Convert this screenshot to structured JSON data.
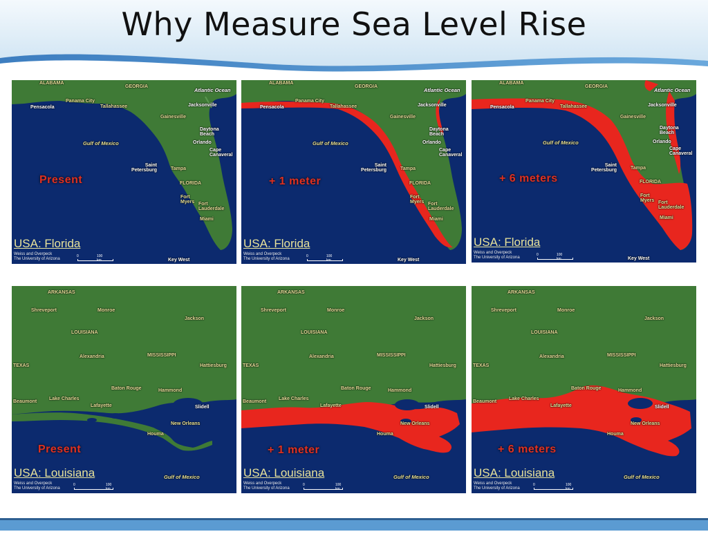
{
  "slide": {
    "title": "Why Measure Sea Level Rise"
  },
  "colors": {
    "land": "#3f7a36",
    "ocean": "#0c2a6e",
    "flood": "#e8261e",
    "label": "#e8e29a",
    "accent": "#4a8ec6"
  },
  "panels": [
    {
      "region": "USA: Florida",
      "scenario": "Present",
      "credit1": "Weiss and Overpeck",
      "credit2": "The University of Arizona",
      "scale0": "0",
      "scale1": "100 km",
      "labels": {
        "alabama": "ALABAMA",
        "georgia": "GEORGIA",
        "atlantic": "Atlantic Ocean",
        "pensacola": "Pensacola",
        "panama": "Panama City",
        "tallahassee": "Tallahassee",
        "jacksonville": "Jacksonville",
        "gainesville": "Gainesville",
        "daytona": "Daytona Beach",
        "orlando": "Orlando",
        "gulf": "Gulf of Mexico",
        "cape": "Cape Canaveral",
        "stpete": "Saint Petersburg",
        "tampa": "Tampa",
        "florida": "FLORIDA",
        "ftmyers": "Fort Myers",
        "ftlaud": "Fort Lauderdale",
        "miami": "Miami",
        "keywest": "Key West"
      }
    },
    {
      "region": "USA: Florida",
      "scenario": "+ 1 meter",
      "credit1": "Weiss and Overpeck",
      "credit2": "The University of Arizona",
      "scale0": "0",
      "scale1": "100 km",
      "labels": {
        "alabama": "ALABAMA",
        "georgia": "GEORGIA",
        "atlantic": "Atlantic Ocean",
        "pensacola": "Pensacola",
        "panama": "Panama City",
        "tallahassee": "Tallahassee",
        "jacksonville": "Jacksonville",
        "gainesville": "Gainesville",
        "daytona": "Daytona Beach",
        "orlando": "Orlando",
        "gulf": "Gulf of Mexico",
        "cape": "Cape Canaveral",
        "stpete": "Saint Petersburg",
        "tampa": "Tampa",
        "florida": "FLORIDA",
        "ftmyers": "Fort Myers",
        "ftlaud": "Fort Lauderdale",
        "miami": "Miami",
        "keywest": "Key West"
      }
    },
    {
      "region": "USA: Florida",
      "scenario": "+ 6 meters",
      "credit1": "Weiss and Overpeck",
      "credit2": "The University of Arizona",
      "scale0": "0",
      "scale1": "100 km",
      "labels": {
        "alabama": "ALABAMA",
        "georgia": "GEORGIA",
        "atlantic": "Atlantic Ocean",
        "pensacola": "Pensacola",
        "panama": "Panama City",
        "tallahassee": "Tallahassee",
        "jacksonville": "Jacksonville",
        "gainesville": "Gainesville",
        "daytona": "Daytona Beach",
        "orlando": "Orlando",
        "gulf": "Gulf of Mexico",
        "cape": "Cape Canaveral",
        "stpete": "Saint Petersburg",
        "tampa": "Tampa",
        "florida": "FLORIDA",
        "ftmyers": "Fort Myers",
        "ftlaud": "Fort Lauderdale",
        "miami": "Miami",
        "keywest": "Key West"
      }
    },
    {
      "region": "USA: Louisiana",
      "scenario": "Present",
      "credit1": "Weiss and Overpeck",
      "credit2": "The University of Arizona",
      "scale0": "0",
      "scale1": "100 km",
      "labels": {
        "arkansas": "ARKANSAS",
        "shreveport": "Shreveport",
        "monroe": "Monroe",
        "jackson": "Jackson",
        "louisiana": "LOUISIANA",
        "texas": "TEXAS",
        "alexandria": "Alexandria",
        "mississippi": "MISSISSIPPI",
        "hattiesburg": "Hattiesburg",
        "batonrouge": "Baton Rouge",
        "hammond": "Hammond",
        "beaumont": "Beaumont",
        "lakecharles": "Lake Charles",
        "lafayette": "Lafayette",
        "slidell": "Slidell",
        "neworleans": "New Orleans",
        "houma": "Houma",
        "gulf": "Gulf of Mexico"
      }
    },
    {
      "region": "USA: Louisiana",
      "scenario": "+ 1 meter",
      "credit1": "Weiss and Overpeck",
      "credit2": "The University of Arizona",
      "scale0": "0",
      "scale1": "100 km",
      "labels": {
        "arkansas": "ARKANSAS",
        "shreveport": "Shreveport",
        "monroe": "Monroe",
        "jackson": "Jackson",
        "louisiana": "LOUISIANA",
        "texas": "TEXAS",
        "alexandria": "Alexandria",
        "mississippi": "MISSISSIPPI",
        "hattiesburg": "Hattiesburg",
        "batonrouge": "Baton Rouge",
        "hammond": "Hammond",
        "beaumont": "Beaumont",
        "lakecharles": "Lake Charles",
        "lafayette": "Lafayette",
        "slidell": "Slidell",
        "neworleans": "New Orleans",
        "houma": "Houma",
        "gulf": "Gulf of Mexico"
      }
    },
    {
      "region": "USA: Louisiana",
      "scenario": "+ 6 meters",
      "credit1": "Weiss and Overpeck",
      "credit2": "The University of Arizona",
      "scale0": "0",
      "scale1": "100 km",
      "labels": {
        "arkansas": "ARKANSAS",
        "shreveport": "Shreveport",
        "monroe": "Monroe",
        "jackson": "Jackson",
        "louisiana": "LOUISIANA",
        "texas": "TEXAS",
        "alexandria": "Alexandria",
        "mississippi": "MISSISSIPPI",
        "hattiesburg": "Hattiesburg",
        "batonrouge": "Baton Rouge",
        "hammond": "Hammond",
        "beaumont": "Beaumont",
        "lakecharles": "Lake Charles",
        "lafayette": "Lafayette",
        "slidell": "Slidell",
        "neworleans": "New Orleans",
        "houma": "Houma",
        "gulf": "Gulf of Mexico"
      }
    }
  ]
}
